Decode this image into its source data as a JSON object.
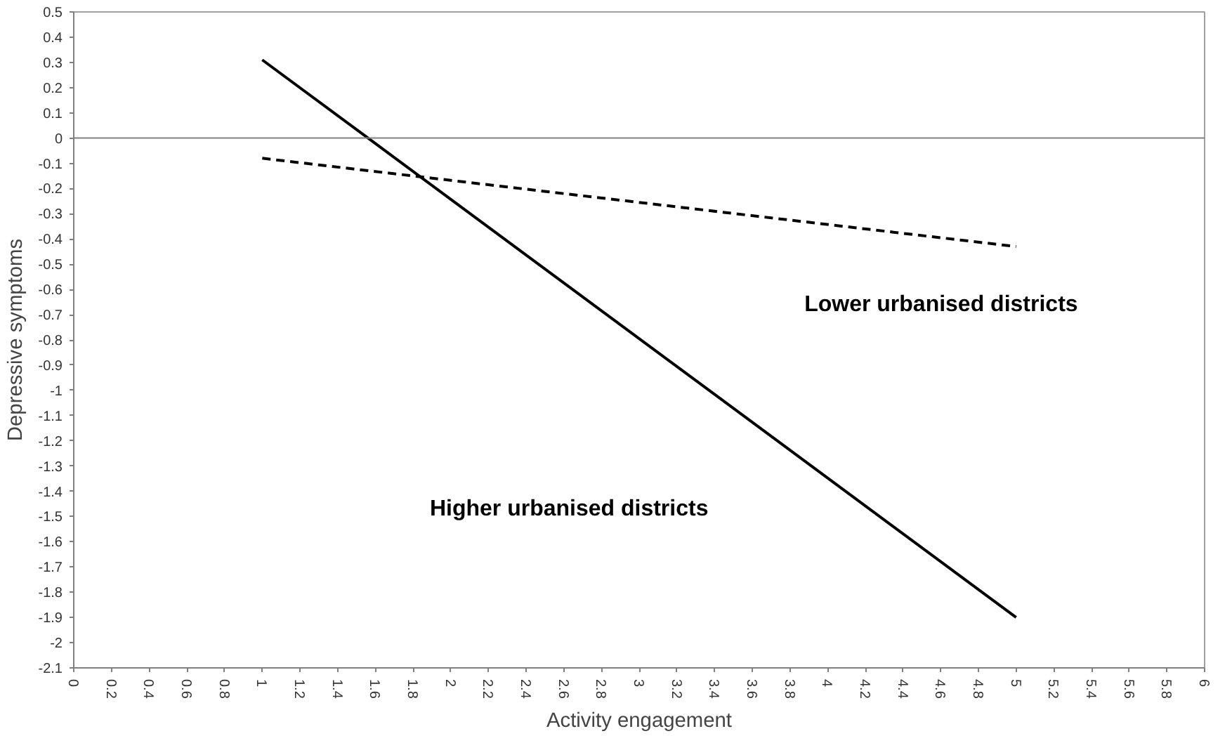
{
  "chart_data": {
    "type": "line",
    "xlabel": "Activity engagement",
    "ylabel": "Depressive symptoms",
    "x": [
      1,
      5
    ],
    "series": [
      {
        "color": "#000000",
        "values": [
          0.31,
          -1.9
        ],
        "line_style": "solid"
      },
      {
        "color": "#000000",
        "values": [
          -0.08,
          -0.43
        ],
        "line_style": "dashed"
      }
    ],
    "annotations": [
      "Lower urbanised districts",
      "Higher urbanised districts"
    ],
    "ref_lines": [
      {
        "axis": "y",
        "value": 0,
        "color": "#808080"
      }
    ],
    "xlim": [
      0,
      6
    ],
    "ylim": [
      -2.1,
      0.5
    ],
    "xticks": [
      0,
      0.2,
      0.4,
      0.6,
      0.8,
      1,
      1.2,
      1.4,
      1.6,
      1.8,
      2,
      2.2,
      2.4,
      2.6,
      2.8,
      3,
      3.2,
      3.4,
      3.6,
      3.8,
      4,
      4.2,
      4.4,
      4.6,
      4.8,
      5,
      5.2,
      5.4,
      5.6,
      5.8,
      6
    ],
    "yticks": [
      0.5,
      0.4,
      0.3,
      0.2,
      0.1,
      0,
      -0.1,
      -0.2,
      -0.3,
      -0.4,
      -0.5,
      -0.6,
      -0.7,
      -0.8,
      -0.9,
      -1,
      -1.1,
      -1.2,
      -1.3,
      -1.4,
      -1.5,
      -1.6,
      -1.7,
      -1.8,
      -1.9,
      -2,
      -2.1
    ],
    "grid": false,
    "marker": "none"
  }
}
